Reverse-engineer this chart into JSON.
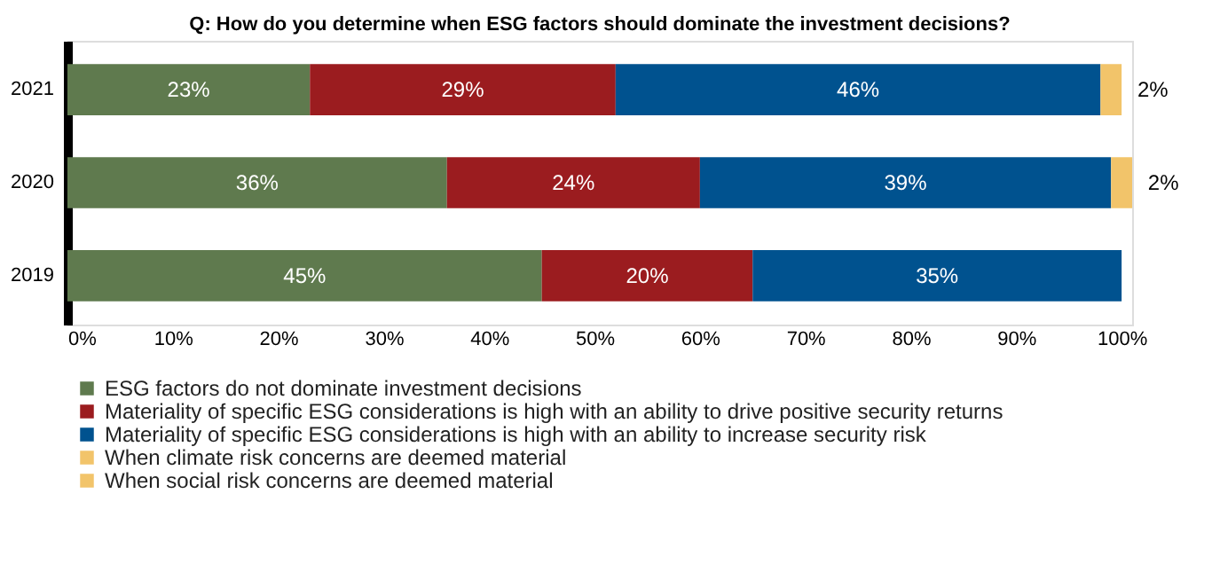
{
  "chart_data": {
    "type": "bar",
    "orientation": "horizontal",
    "stacked": true,
    "title": "Q: How do you determine when ESG factors should dominate the investment decisions?",
    "categories": [
      "2021",
      "2020",
      "2019"
    ],
    "series": [
      {
        "name": "ESG factors do not dominate investment decisions",
        "color": "#5f7a4e",
        "values": [
          23,
          36,
          45
        ],
        "value_labels": [
          "23%",
          "36%",
          "45%"
        ]
      },
      {
        "name": "Materiality of specific ESG considerations is high with an ability to drive positive security returns",
        "color": "#9b1c1f",
        "values": [
          29,
          24,
          20
        ],
        "value_labels": [
          "29%",
          "24%",
          "20%"
        ]
      },
      {
        "name": "Materiality of specific ESG considerations is high with an ability to increase security risk",
        "color": "#00528f",
        "values": [
          46,
          39,
          35
        ],
        "value_labels": [
          "46%",
          "39%",
          "35%"
        ]
      },
      {
        "name": "When climate risk concerns are deemed material",
        "color": "#f2c46a",
        "values": [
          2,
          2,
          null
        ],
        "value_labels": [
          "2%",
          "2%",
          null
        ]
      },
      {
        "name": "When social risk concerns are deemed material",
        "color": "#f2c46a",
        "values": [
          null,
          null,
          null
        ]
      }
    ],
    "xlim": [
      0,
      101
    ],
    "xticks": [
      {
        "value": 0,
        "label": "0%"
      },
      {
        "value": 10,
        "label": "10%"
      },
      {
        "value": 20,
        "label": "20%"
      },
      {
        "value": 30,
        "label": "30%"
      },
      {
        "value": 40,
        "label": "40%"
      },
      {
        "value": 50,
        "label": "50%"
      },
      {
        "value": 60,
        "label": "60%"
      },
      {
        "value": 70,
        "label": "70%"
      },
      {
        "value": 80,
        "label": "80%"
      },
      {
        "value": 90,
        "label": "90%"
      },
      {
        "value": 100,
        "label": "100%"
      }
    ],
    "grid": false,
    "legend": "bottom"
  }
}
